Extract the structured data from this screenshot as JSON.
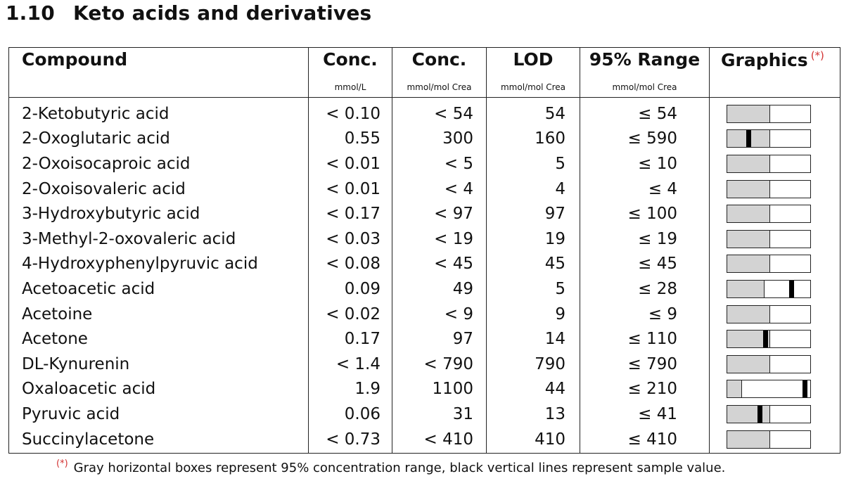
{
  "section": {
    "number": "1.10",
    "title": "Keto acids and derivatives"
  },
  "headers": {
    "compound": "Compound",
    "conc1": "Conc.",
    "conc1_unit": "mmol/L",
    "conc2": "Conc.",
    "conc2_unit": "mmol/mol Crea",
    "lod": "LOD",
    "lod_unit": "mmol/mol Crea",
    "range": "95% Range",
    "range_unit": "mmol/mol Crea",
    "graphics": "Graphics",
    "graphics_mark": "(*)"
  },
  "rows": [
    {
      "compound": "2-Ketobutyric acid",
      "conc_mmol_l": "< 0.10",
      "conc_mmol_mol": "< 54",
      "lod": "54",
      "range": "≤ 54",
      "graphic": {
        "range_fraction": 0.5,
        "sample_fraction": null
      }
    },
    {
      "compound": "2-Oxoglutaric acid",
      "conc_mmol_l": "0.55",
      "conc_mmol_mol": "300",
      "lod": "160",
      "range": "≤ 590",
      "graphic": {
        "range_fraction": 0.5,
        "sample_fraction": 0.25
      }
    },
    {
      "compound": "2-Oxoisocaproic acid",
      "conc_mmol_l": "< 0.01",
      "conc_mmol_mol": "< 5",
      "lod": "5",
      "range": "≤ 10",
      "graphic": {
        "range_fraction": 0.5,
        "sample_fraction": null
      }
    },
    {
      "compound": "2-Oxoisovaleric acid",
      "conc_mmol_l": "< 0.01",
      "conc_mmol_mol": "< 4",
      "lod": "4",
      "range": "≤ 4",
      "graphic": {
        "range_fraction": 0.5,
        "sample_fraction": null
      }
    },
    {
      "compound": "3-Hydroxybutyric acid",
      "conc_mmol_l": "< 0.17",
      "conc_mmol_mol": "< 97",
      "lod": "97",
      "range": "≤ 100",
      "graphic": {
        "range_fraction": 0.5,
        "sample_fraction": null
      }
    },
    {
      "compound": "3-Methyl-2-oxovaleric acid",
      "conc_mmol_l": "< 0.03",
      "conc_mmol_mol": "< 19",
      "lod": "19",
      "range": "≤ 19",
      "graphic": {
        "range_fraction": 0.5,
        "sample_fraction": null
      }
    },
    {
      "compound": "4-Hydroxyphenylpyruvic acid",
      "conc_mmol_l": "< 0.08",
      "conc_mmol_mol": "< 45",
      "lod": "45",
      "range": "≤ 45",
      "graphic": {
        "range_fraction": 0.5,
        "sample_fraction": null
      }
    },
    {
      "compound": "Acetoacetic acid",
      "conc_mmol_l": "0.09",
      "conc_mmol_mol": "49",
      "lod": "5",
      "range": "≤ 28",
      "graphic": {
        "range_fraction": 0.43,
        "sample_fraction": 0.76
      }
    },
    {
      "compound": "Acetoine",
      "conc_mmol_l": "< 0.02",
      "conc_mmol_mol": "< 9",
      "lod": "9",
      "range": "≤ 9",
      "graphic": {
        "range_fraction": 0.5,
        "sample_fraction": null
      }
    },
    {
      "compound": "Acetone",
      "conc_mmol_l": "0.17",
      "conc_mmol_mol": "97",
      "lod": "14",
      "range": "≤ 110",
      "graphic": {
        "range_fraction": 0.5,
        "sample_fraction": 0.45
      }
    },
    {
      "compound": "DL-Kynurenin",
      "conc_mmol_l": "< 1.4",
      "conc_mmol_mol": "< 790",
      "lod": "790",
      "range": "≤ 790",
      "graphic": {
        "range_fraction": 0.5,
        "sample_fraction": null
      }
    },
    {
      "compound": "Oxaloacetic acid",
      "conc_mmol_l": "1.9",
      "conc_mmol_mol": "1100",
      "lod": "44",
      "range": "≤ 210",
      "graphic": {
        "range_fraction": 0.17,
        "sample_fraction": 0.92
      }
    },
    {
      "compound": "Pyruvic acid",
      "conc_mmol_l": "0.06",
      "conc_mmol_mol": "31",
      "lod": "13",
      "range": "≤ 41",
      "graphic": {
        "range_fraction": 0.5,
        "sample_fraction": 0.38
      }
    },
    {
      "compound": "Succinylacetone",
      "conc_mmol_l": "< 0.73",
      "conc_mmol_mol": "< 410",
      "lod": "410",
      "range": "≤ 410",
      "graphic": {
        "range_fraction": 0.5,
        "sample_fraction": null
      }
    }
  ],
  "footnote": {
    "mark": "(*)",
    "text": "Gray horizontal boxes represent 95% concentration range, black vertical lines represent sample value."
  }
}
